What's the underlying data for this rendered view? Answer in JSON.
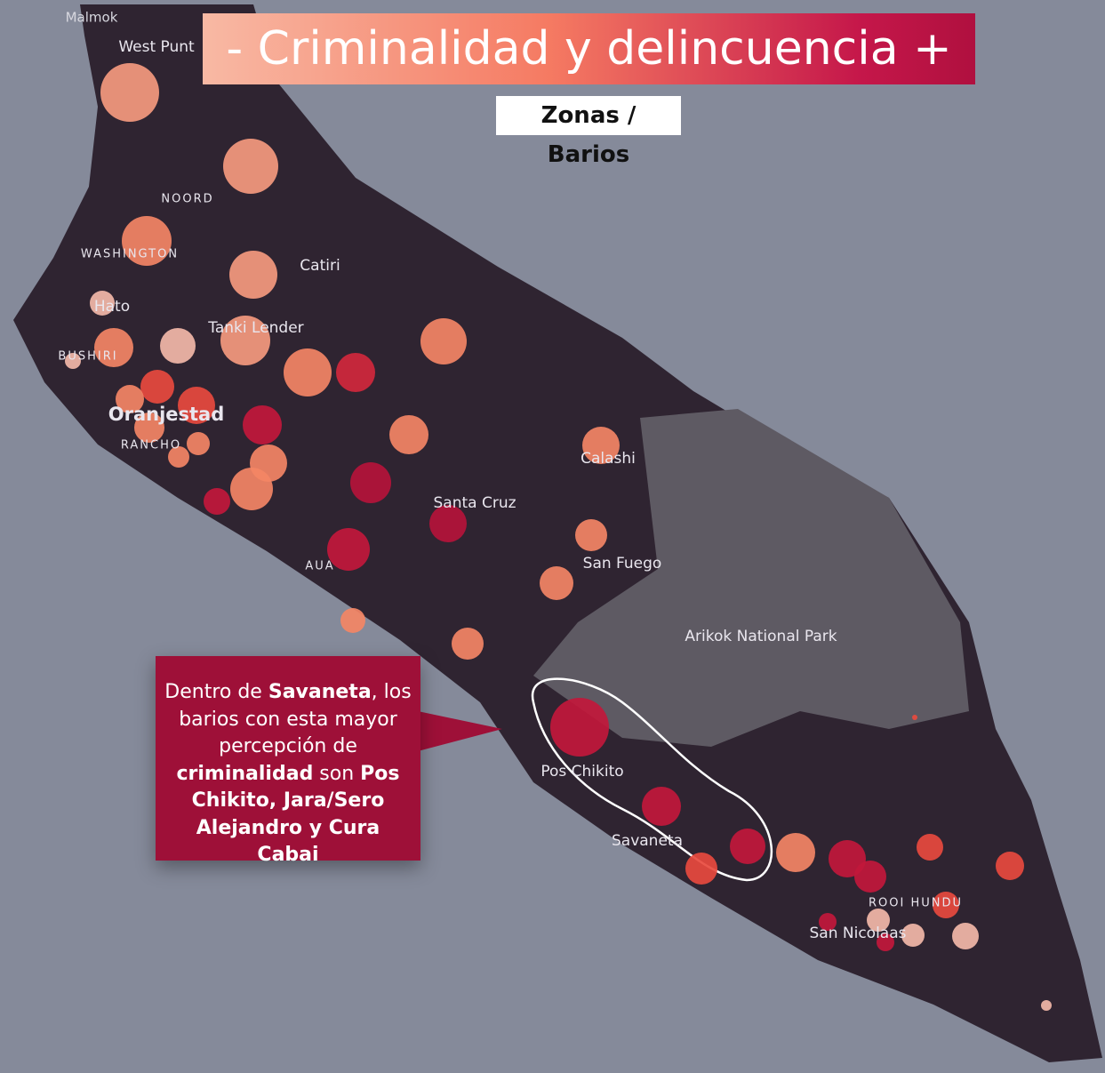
{
  "title": "- Criminalidad y delincuencia +",
  "subtitle": "Zonas / Barios",
  "places": [
    "Malmok",
    "West Punt",
    "NOORD",
    "WASHINGTON",
    "Catiri",
    "Hato",
    "Tanki Lender",
    "BUSHIRI",
    "Oranjestad",
    "RANCHO",
    "Calashi",
    "Santa Cruz",
    "San Fuego",
    "AUA",
    "Arikok National Park",
    "Pos Chikito",
    "Savaneta",
    "ROOI HUNDU",
    "San Nicolaas"
  ],
  "callout": [
    {
      "text": "Dentro de ",
      "bold": false
    },
    {
      "text": "Savaneta",
      "bold": true
    },
    {
      "text": ", los barios con esta mayor percepción de ",
      "bold": false
    },
    {
      "text": "criminalidad",
      "bold": true
    },
    {
      "text": " son ",
      "bold": false
    },
    {
      "text": "Pos Chikito, Jara/Sero Alejandro y Cura Cabai",
      "bold": true
    }
  ]
}
